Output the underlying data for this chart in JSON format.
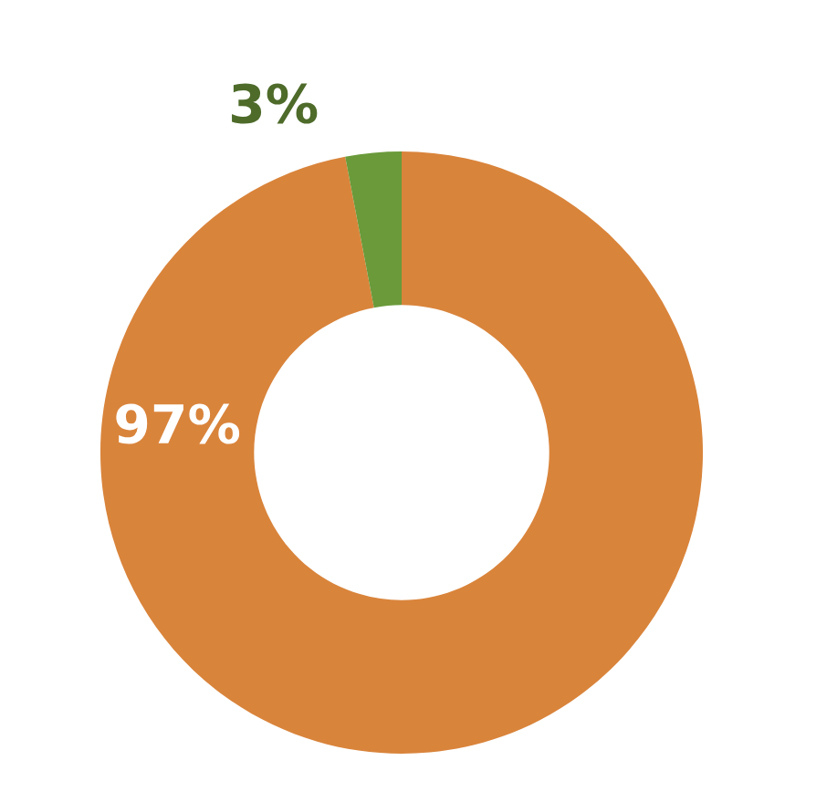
{
  "chart_data": {
    "type": "donut",
    "categories": [
      null,
      null
    ],
    "values": [
      97,
      3
    ],
    "colors": [
      "#d9843b",
      "#6a9a3a"
    ],
    "value_labels": [
      "97%",
      "3%"
    ]
  }
}
